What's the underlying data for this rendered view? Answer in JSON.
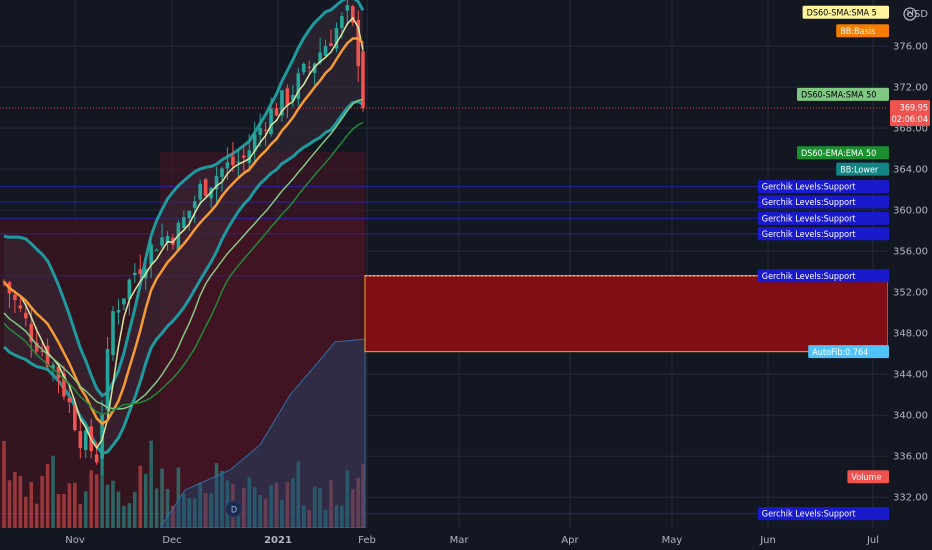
{
  "chart_data": {
    "type": "candlestick",
    "currency": "USD",
    "price_axis": {
      "ylim": [
        329.0,
        380.5
      ],
      "ticks": [
        "376.00",
        "372.00",
        "368.00",
        "364.00",
        "360.00",
        "356.00",
        "352.00",
        "348.00",
        "344.00",
        "340.00",
        "336.00",
        "332.00"
      ]
    },
    "time_axis": {
      "ticks": [
        "Nov",
        "Dec",
        "2021",
        "Feb",
        "Mar",
        "Apr",
        "May",
        "Jun",
        "Jul"
      ],
      "bold": "2021"
    },
    "last_price": {
      "value": "369.95",
      "countdown": "02:06:04"
    },
    "series": [
      {
        "name": "DS60-SMA:SMA 5",
        "value": 379.3,
        "color": "#fff59d",
        "text_color": "#000000"
      },
      {
        "name": "BB:Basis",
        "value": 377.5,
        "color": "#f57c00",
        "text_color": "#ffffff"
      },
      {
        "name": "DS60-SMA:SMA 50",
        "value": 371.3,
        "color": "#81c784",
        "text_color": "#000000"
      },
      {
        "name": "DS60-EMA:EMA 50",
        "value": 365.6,
        "color": "#1b8f2f",
        "text_color": "#ffffff"
      },
      {
        "name": "BB:Lower",
        "value": 364.0,
        "color": "#138484",
        "text_color": "#ffffff"
      },
      {
        "name": "Gerchik Levels:Support",
        "value": 362.3,
        "color": "#1a1acd",
        "text_color": "#ffffff"
      },
      {
        "name": "Gerchik Levels:Support",
        "value": 360.8,
        "color": "#1a1acd",
        "text_color": "#ffffff"
      },
      {
        "name": "Gerchik Levels:Support",
        "value": 359.2,
        "color": "#1a1acd",
        "text_color": "#ffffff"
      },
      {
        "name": "Gerchik Levels:Support",
        "value": 357.7,
        "color": "#1a1acd",
        "text_color": "#ffffff"
      },
      {
        "name": "Gerchik Levels:Support",
        "value": 353.6,
        "color": "#1a1acd",
        "text_color": "#ffffff"
      },
      {
        "name": "AutoFib:0.764",
        "value": 346.2,
        "color": "#4fc3f7",
        "text_color": "#ffffff"
      },
      {
        "name": "Volume",
        "value": 334.0,
        "color": "#ef5350",
        "text_color": "#ffffff"
      },
      {
        "name": "Gerchik Levels:Support",
        "value": 330.4,
        "color": "#1a1acd",
        "text_color": "#ffffff"
      }
    ],
    "zone": {
      "top": 353.6,
      "bottom": 346.2,
      "color": "#8b0e14"
    },
    "colors": {
      "background": "#131722",
      "up": "#26a69a",
      "down": "#ef5350",
      "bollinger": "#1e9a9e",
      "sma5": "#d9e8a0",
      "basis": "#f59a35",
      "sma50": "#86c983",
      "ema50": "#208a3a",
      "support_line": "#2727c9",
      "grid": "#262b38"
    },
    "grid": true
  },
  "badge": {
    "letter": "D"
  }
}
